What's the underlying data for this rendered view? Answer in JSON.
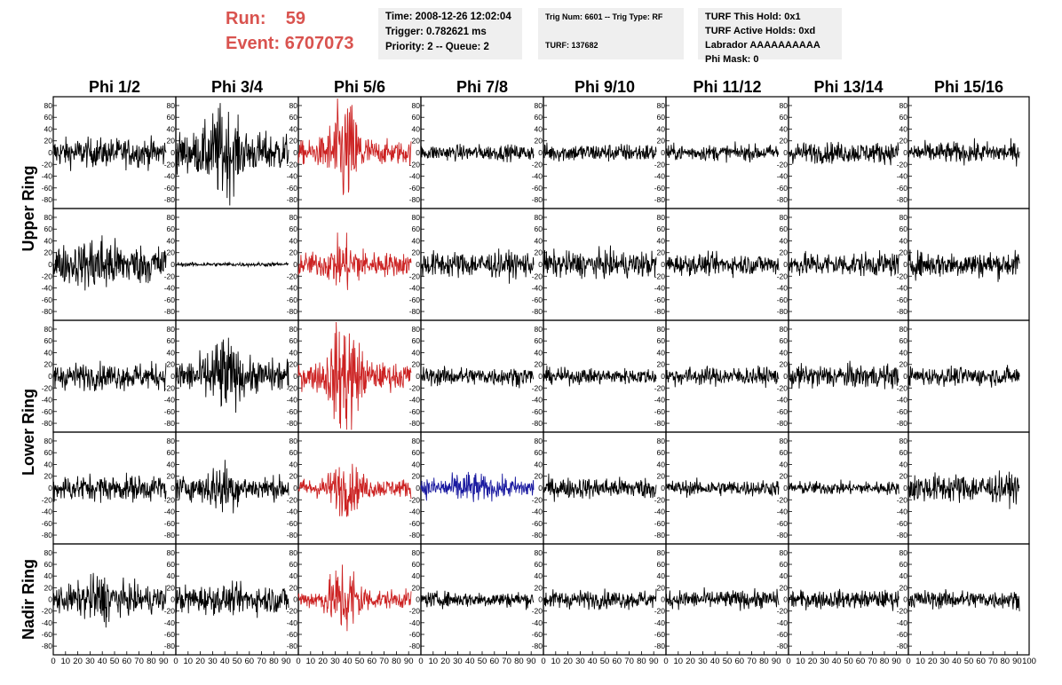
{
  "header": {
    "run_label": "Run:",
    "run_value": "59",
    "event_label": "Event:",
    "event_value": "6707073",
    "info_box_1": [
      "Time: 2008-12-26 12:02:04",
      "Trigger: 0.782621 ms",
      "Priority: 2 -- Queue: 2"
    ],
    "info_box_2": [
      "Trig Num: 6601 -- Trig Type: RF",
      "",
      "TURF: 137682"
    ],
    "info_box_3": [
      "TURF This Hold: 0x1",
      "TURF Active Holds: 0xd",
      "Labrador AAAAAAAAAA",
      "Phi Mask: 0"
    ],
    "accent_color": "#d9534f"
  },
  "chart_data": {
    "type": "line",
    "description": "Grid of waveform panels, 8 phi columns x 5 rows",
    "columns": [
      "Phi 1/2",
      "Phi 3/4",
      "Phi 5/6",
      "Phi 7/8",
      "Phi 9/10",
      "Phi 11/12",
      "Phi 13/14",
      "Phi 15/16"
    ],
    "row_groups": [
      {
        "label": "Upper Ring",
        "rows": [
          0,
          1
        ]
      },
      {
        "label": "Lower Ring",
        "rows": [
          2,
          3
        ]
      },
      {
        "label": "Nadir Ring",
        "rows": [
          4
        ]
      }
    ],
    "ylim": [
      -95,
      95
    ],
    "y_ticks": [
      80,
      60,
      40,
      20,
      0,
      -20,
      -40,
      -60,
      -80
    ],
    "xlim": [
      0,
      100
    ],
    "x_tick_labels": [
      "0",
      "10",
      "20",
      "30",
      "40",
      "50",
      "60",
      "70",
      "80",
      "90",
      "100"
    ],
    "x_samples": 260,
    "x_data_end": 92,
    "series_colors": {
      "normal": "#000000",
      "trigger": "#cc2222",
      "alt": "#1a1aa0"
    },
    "panels": [
      {
        "row": 0,
        "col": 0,
        "amp": 22,
        "burst": 0,
        "color": "normal"
      },
      {
        "row": 0,
        "col": 1,
        "amp": 30,
        "burst": 45,
        "color": "normal"
      },
      {
        "row": 0,
        "col": 2,
        "amp": 18,
        "burst": 70,
        "color": "trigger"
      },
      {
        "row": 0,
        "col": 3,
        "amp": 12,
        "burst": 0,
        "color": "normal"
      },
      {
        "row": 0,
        "col": 4,
        "amp": 14,
        "burst": 0,
        "color": "normal"
      },
      {
        "row": 0,
        "col": 5,
        "amp": 12,
        "burst": 0,
        "color": "normal"
      },
      {
        "row": 0,
        "col": 6,
        "amp": 16,
        "burst": 0,
        "color": "normal"
      },
      {
        "row": 0,
        "col": 7,
        "amp": 16,
        "burst": 0,
        "color": "normal"
      },
      {
        "row": 1,
        "col": 0,
        "amp": 30,
        "burst": 20,
        "color": "normal"
      },
      {
        "row": 1,
        "col": 1,
        "amp": 3,
        "burst": 0,
        "color": "normal"
      },
      {
        "row": 1,
        "col": 2,
        "amp": 18,
        "burst": 25,
        "color": "trigger"
      },
      {
        "row": 1,
        "col": 3,
        "amp": 20,
        "burst": 0,
        "color": "normal"
      },
      {
        "row": 1,
        "col": 4,
        "amp": 20,
        "burst": 0,
        "color": "normal"
      },
      {
        "row": 1,
        "col": 5,
        "amp": 16,
        "burst": 0,
        "color": "normal"
      },
      {
        "row": 1,
        "col": 6,
        "amp": 18,
        "burst": 0,
        "color": "normal"
      },
      {
        "row": 1,
        "col": 7,
        "amp": 20,
        "burst": 0,
        "color": "normal"
      },
      {
        "row": 2,
        "col": 0,
        "amp": 20,
        "burst": 0,
        "color": "normal"
      },
      {
        "row": 2,
        "col": 1,
        "amp": 25,
        "burst": 40,
        "color": "normal"
      },
      {
        "row": 2,
        "col": 2,
        "amp": 20,
        "burst": 75,
        "color": "trigger"
      },
      {
        "row": 2,
        "col": 3,
        "amp": 14,
        "burst": 0,
        "color": "normal"
      },
      {
        "row": 2,
        "col": 4,
        "amp": 12,
        "burst": 0,
        "color": "normal"
      },
      {
        "row": 2,
        "col": 5,
        "amp": 14,
        "burst": 0,
        "color": "normal"
      },
      {
        "row": 2,
        "col": 6,
        "amp": 18,
        "burst": 0,
        "color": "normal"
      },
      {
        "row": 2,
        "col": 7,
        "amp": 14,
        "burst": 0,
        "color": "normal"
      },
      {
        "row": 3,
        "col": 0,
        "amp": 20,
        "burst": 0,
        "color": "normal"
      },
      {
        "row": 3,
        "col": 1,
        "amp": 18,
        "burst": 25,
        "color": "normal"
      },
      {
        "row": 3,
        "col": 2,
        "amp": 14,
        "burst": 30,
        "color": "trigger"
      },
      {
        "row": 3,
        "col": 3,
        "amp": 16,
        "burst": 10,
        "color": "alt"
      },
      {
        "row": 3,
        "col": 4,
        "amp": 16,
        "burst": 0,
        "color": "normal"
      },
      {
        "row": 3,
        "col": 5,
        "amp": 12,
        "burst": 0,
        "color": "normal"
      },
      {
        "row": 3,
        "col": 6,
        "amp": 10,
        "burst": 0,
        "color": "normal"
      },
      {
        "row": 3,
        "col": 7,
        "amp": 22,
        "burst": 0,
        "color": "normal"
      },
      {
        "row": 4,
        "col": 0,
        "amp": 22,
        "burst": 20,
        "color": "normal"
      },
      {
        "row": 4,
        "col": 1,
        "amp": 22,
        "burst": 0,
        "color": "normal"
      },
      {
        "row": 4,
        "col": 2,
        "amp": 14,
        "burst": 50,
        "color": "trigger"
      },
      {
        "row": 4,
        "col": 3,
        "amp": 12,
        "burst": 0,
        "color": "normal"
      },
      {
        "row": 4,
        "col": 4,
        "amp": 14,
        "burst": 0,
        "color": "normal"
      },
      {
        "row": 4,
        "col": 5,
        "amp": 14,
        "burst": 0,
        "color": "normal"
      },
      {
        "row": 4,
        "col": 6,
        "amp": 14,
        "burst": 0,
        "color": "normal"
      },
      {
        "row": 4,
        "col": 7,
        "amp": 14,
        "burst": 0,
        "color": "normal"
      }
    ]
  }
}
